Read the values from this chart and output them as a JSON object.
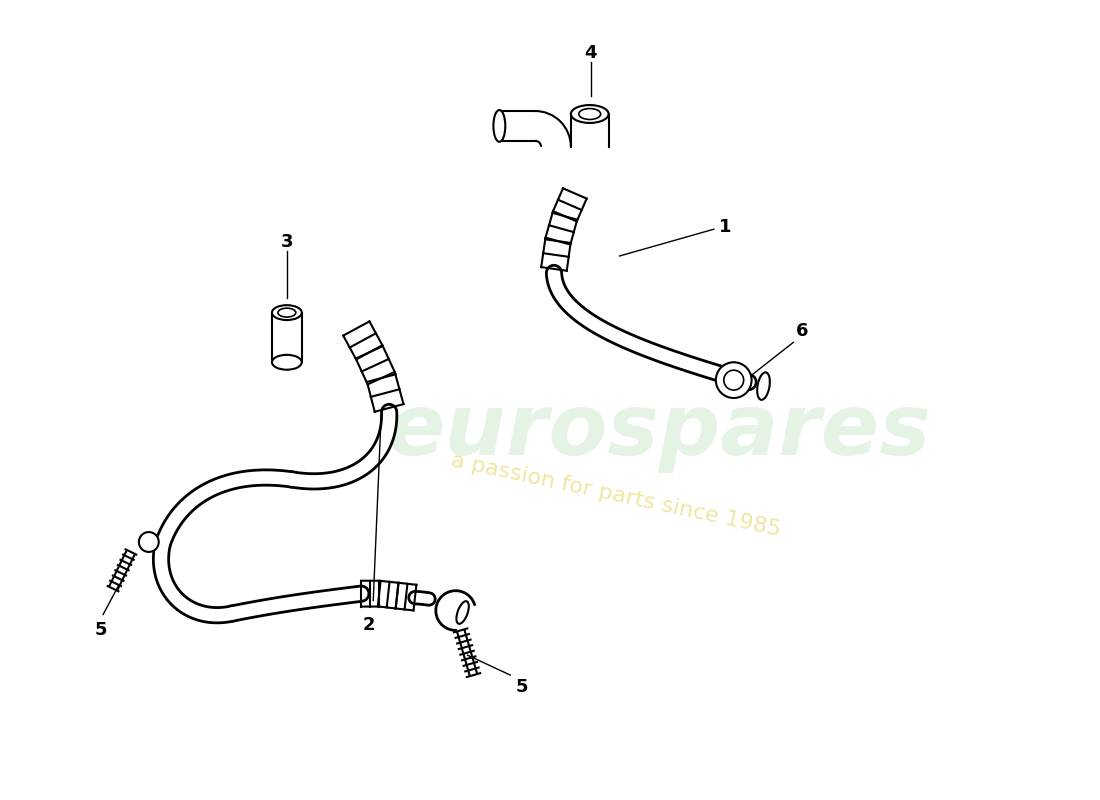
{
  "background_color": "#ffffff",
  "watermark_text": "eurospares",
  "watermark_subtext": "a passion for parts since 1985",
  "label_fontsize": 13,
  "label_fontweight": "bold",
  "line_color": "#000000"
}
